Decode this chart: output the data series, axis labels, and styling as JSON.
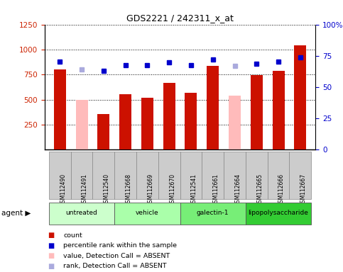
{
  "title": "GDS2221 / 242311_x_at",
  "samples": [
    "GSM112490",
    "GSM112491",
    "GSM112540",
    "GSM112668",
    "GSM112669",
    "GSM112670",
    "GSM112541",
    "GSM112661",
    "GSM112664",
    "GSM112665",
    "GSM112666",
    "GSM112667"
  ],
  "bar_values": [
    800,
    500,
    355,
    550,
    520,
    665,
    565,
    835,
    540,
    745,
    790,
    1040
  ],
  "bar_colors": [
    "#cc1100",
    "#ffbbbb",
    "#cc1100",
    "#cc1100",
    "#cc1100",
    "#cc1100",
    "#cc1100",
    "#cc1100",
    "#ffbbbb",
    "#cc1100",
    "#cc1100",
    "#cc1100"
  ],
  "rank_values": [
    880,
    800,
    790,
    840,
    840,
    870,
    845,
    900,
    835,
    860,
    880,
    920
  ],
  "rank_colors": [
    "#0000cc",
    "#aaaadd",
    "#0000cc",
    "#0000cc",
    "#0000cc",
    "#0000cc",
    "#0000cc",
    "#0000cc",
    "#aaaadd",
    "#0000cc",
    "#0000cc",
    "#0000cc"
  ],
  "ylim_left": [
    0,
    1250
  ],
  "ylim_right": [
    0,
    100
  ],
  "yticks_left": [
    250,
    500,
    750,
    1000,
    1250
  ],
  "yticks_right": [
    0,
    25,
    50,
    75,
    100
  ],
  "groups": [
    {
      "label": "untreated",
      "start": 0,
      "end": 3,
      "color": "#ccffcc"
    },
    {
      "label": "vehicle",
      "start": 3,
      "end": 6,
      "color": "#aaffaa"
    },
    {
      "label": "galectin-1",
      "start": 6,
      "end": 9,
      "color": "#77ee77"
    },
    {
      "label": "lipopolysaccharide",
      "start": 9,
      "end": 12,
      "color": "#33cc33"
    }
  ],
  "legend_items": [
    {
      "label": "count",
      "color": "#cc1100"
    },
    {
      "label": "percentile rank within the sample",
      "color": "#0000cc"
    },
    {
      "label": "value, Detection Call = ABSENT",
      "color": "#ffbbbb"
    },
    {
      "label": "rank, Detection Call = ABSENT",
      "color": "#aaaadd"
    }
  ],
  "bar_width": 0.55,
  "grid_color": "#000000",
  "bg_color": "#ffffff",
  "tick_color_left": "#cc2200",
  "tick_color_right": "#0000cc",
  "sample_box_color": "#cccccc",
  "sample_box_edge": "#888888"
}
